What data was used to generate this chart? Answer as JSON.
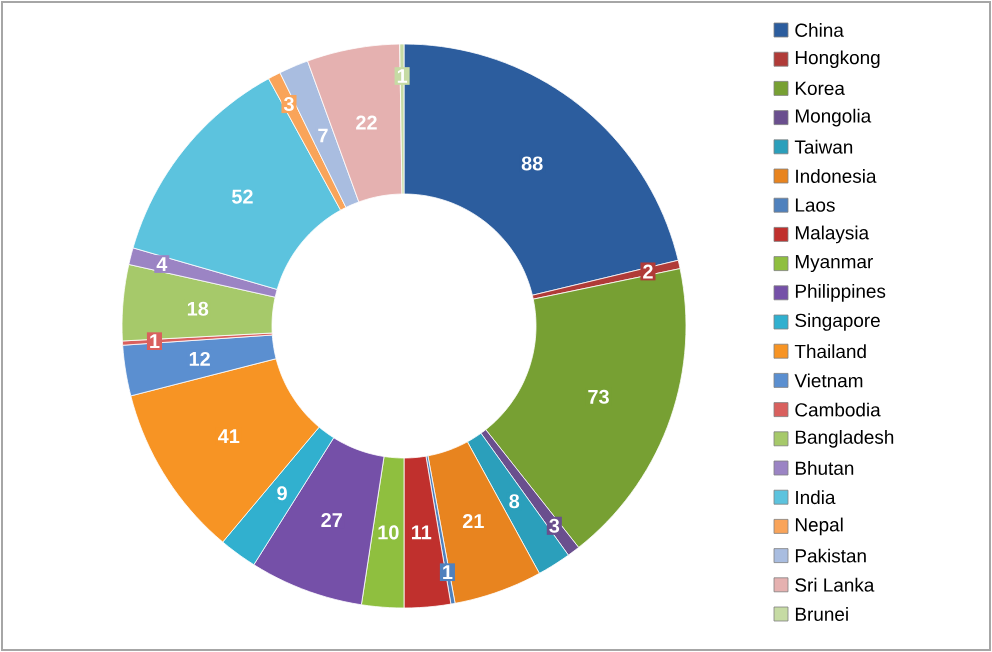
{
  "chart_data": {
    "type": "donut",
    "categories": [
      "China",
      "Hongkong",
      "Korea",
      "Mongolia",
      "Taiwan",
      "Indonesia",
      "Laos",
      "Malaysia",
      "Myanmar",
      "Philippines",
      "Singapore",
      "Thailand",
      "Vietnam",
      "Cambodia",
      "Bangladesh",
      "Bhutan",
      "India",
      "Nepal",
      "Pakistan",
      "Sri Lanka",
      "Brunei"
    ],
    "values": [
      88,
      2,
      73,
      3,
      8,
      21,
      1,
      11,
      10,
      27,
      9,
      41,
      12,
      1,
      18,
      4,
      52,
      3,
      7,
      22,
      1
    ],
    "colors": [
      "#2c5d9e",
      "#b03b38",
      "#77a033",
      "#6a4f8e",
      "#2b9fbb",
      "#e8841f",
      "#4f81bd",
      "#c0302d",
      "#8fbf3f",
      "#7550a8",
      "#31b0cf",
      "#f79424",
      "#5b8fd0",
      "#d9605e",
      "#a6c96a",
      "#9b84c4",
      "#5cc3de",
      "#f9a45a",
      "#a9bde0",
      "#e5b1b0",
      "#c6dba4"
    ],
    "data_labels": true,
    "legend": "right"
  }
}
